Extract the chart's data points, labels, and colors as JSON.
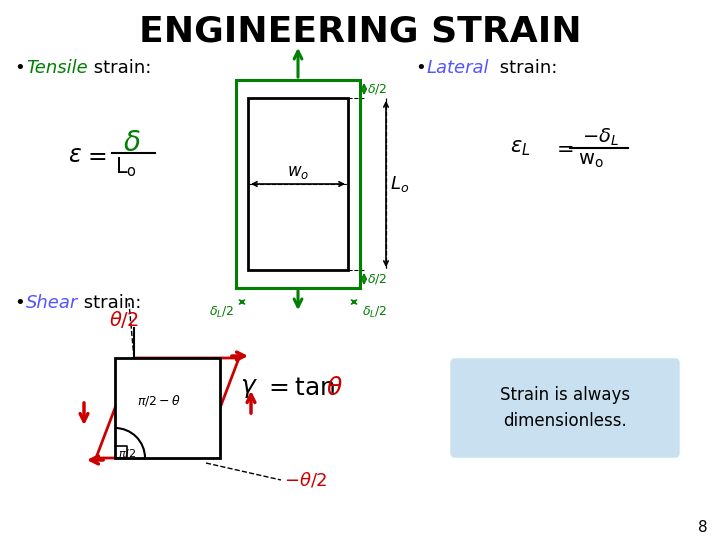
{
  "title": "ENGINEERING STRAIN",
  "title_fontsize": 26,
  "title_color": "#000000",
  "bg_color": "#ffffff",
  "tensile_color": "#008000",
  "lateral_color": "#5555ff",
  "shear_color": "#5555ff",
  "strain_box_color": "#c8e0f0",
  "strain_box_text": "Strain is always\ndimensionless.",
  "page_number": "8",
  "green": "#008000",
  "red": "#cc0000",
  "black": "#000000",
  "dpi": 100,
  "figw": 7.2,
  "figh": 5.4
}
